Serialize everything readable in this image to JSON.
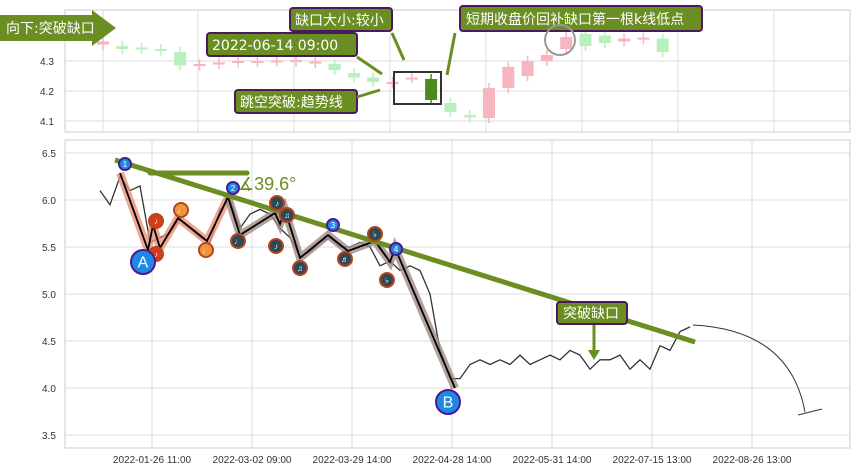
{
  "chart_data": [
    {
      "type": "candlestick",
      "ylim": [
        4.06,
        4.46
      ],
      "y_ticks": [
        "4.3",
        "4.2",
        "4.1"
      ],
      "grid": true,
      "candles": [
        {
          "o": 4.365,
          "c": 4.355,
          "up": true
        },
        {
          "o": 4.35,
          "c": 4.34,
          "up": false
        },
        {
          "o": 4.345,
          "c": 4.34,
          "up": false
        },
        {
          "o": 4.34,
          "c": 4.335,
          "up": false
        },
        {
          "o": 4.33,
          "c": 4.285,
          "up": false
        },
        {
          "o": 4.29,
          "c": 4.285,
          "up": true
        },
        {
          "o": 4.295,
          "c": 4.29,
          "up": true
        },
        {
          "o": 4.3,
          "c": 4.295,
          "up": true
        },
        {
          "o": 4.3,
          "c": 4.297,
          "up": true
        },
        {
          "o": 4.302,
          "c": 4.298,
          "up": true
        },
        {
          "o": 4.303,
          "c": 4.298,
          "up": true
        },
        {
          "o": 4.298,
          "c": 4.293,
          "up": true
        },
        {
          "o": 4.29,
          "c": 4.27,
          "up": false
        },
        {
          "o": 4.26,
          "c": 4.245,
          "up": false
        },
        {
          "o": 4.245,
          "c": 4.23,
          "up": false
        },
        {
          "o": 4.23,
          "c": 4.225,
          "up": true
        },
        {
          "o": 4.245,
          "c": 4.243,
          "up": true
        },
        {
          "o": 4.24,
          "c": 4.17,
          "up": false
        },
        {
          "o": 4.16,
          "c": 4.13,
          "up": false
        },
        {
          "o": 4.12,
          "c": 4.112,
          "up": false
        },
        {
          "o": 4.11,
          "c": 4.21,
          "up": true
        },
        {
          "o": 4.21,
          "c": 4.28,
          "up": true
        },
        {
          "o": 4.25,
          "c": 4.3,
          "up": true
        },
        {
          "o": 4.3,
          "c": 4.32,
          "up": true
        },
        {
          "o": 4.34,
          "c": 4.38,
          "up": true
        },
        {
          "o": 4.39,
          "c": 4.35,
          "up": false
        },
        {
          "o": 4.385,
          "c": 4.36,
          "up": false
        },
        {
          "o": 4.375,
          "c": 4.365,
          "up": true
        },
        {
          "o": 4.378,
          "c": 4.372,
          "up": true
        },
        {
          "o": 4.375,
          "c": 4.33,
          "up": false
        }
      ],
      "annotations": {
        "direction": "向下:突破缺口",
        "gap_time": "2022-06-14 09:00",
        "gap_size": "缺口大小:较小",
        "fill_note": "短期收盘价回补缺口第一根k线低点",
        "breakout": "跳空突破:趋势线"
      }
    },
    {
      "type": "line",
      "ylim": [
        3.4,
        6.6
      ],
      "y_ticks": [
        "6.5",
        "6.0",
        "5.5",
        "5.0",
        "4.5",
        "4.0",
        "3.5"
      ],
      "x_ticks": [
        "2022-01-26 11:00",
        "2022-03-02 09:00",
        "2022-03-29 14:00",
        "2022-04-28 14:00",
        "2022-05-31 14:00",
        "2022-07-15 13:00",
        "2022-08-26 13:00"
      ],
      "grid": true,
      "values": [
        6.1,
        5.95,
        6.25,
        6.1,
        6.15,
        5.55,
        5.6,
        5.65,
        5.8,
        5.7,
        5.6,
        5.55,
        5.9,
        6.0,
        5.7,
        5.85,
        5.9,
        5.85,
        5.7,
        5.6,
        5.4,
        5.45,
        5.55,
        5.6,
        5.5,
        5.5,
        5.55,
        5.5,
        5.3,
        5.35,
        5.25,
        5.3,
        5.25,
        5.0,
        4.4,
        4.1,
        4.1,
        4.25,
        4.3,
        4.25,
        4.3,
        4.25,
        4.35,
        4.25,
        4.3,
        4.35,
        4.3,
        4.4,
        4.35,
        4.2,
        4.3,
        4.3,
        4.35,
        4.2,
        4.3,
        4.2,
        4.45,
        4.4,
        4.6,
        4.65
      ],
      "angle_label": "∡39.6°",
      "point_labels": {
        "A": "A",
        "B": "B",
        "p1": "1",
        "p2": "2",
        "p3": "3",
        "p4": "4"
      },
      "gap_label": "突破缺口",
      "colors": {
        "trend": "#6b8e23",
        "price": "#333333",
        "label_bg": "#6b8e23",
        "label_border": "#4b1a5e"
      }
    }
  ]
}
